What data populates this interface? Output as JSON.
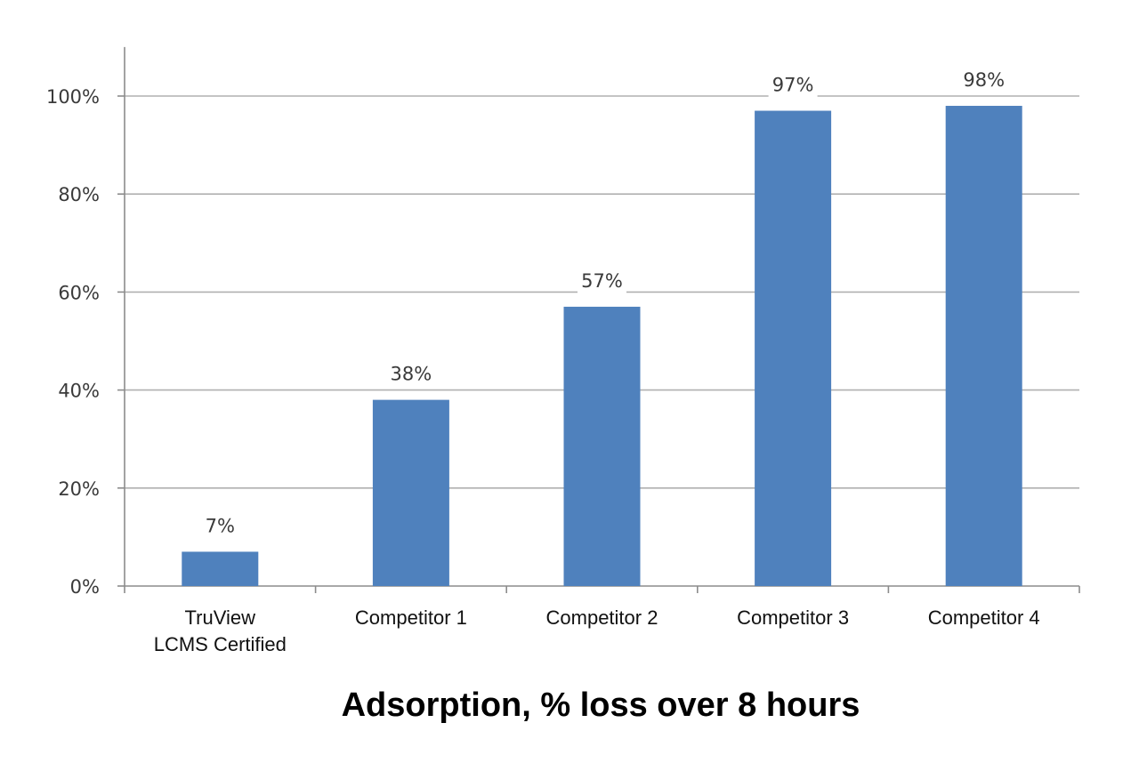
{
  "chart_data": {
    "type": "bar",
    "title": "Adsorption, % loss over 8 hours",
    "xlabel": "",
    "ylabel": "",
    "categories": [
      [
        "TruView",
        "LCMS Certified"
      ],
      [
        "Competitor 1"
      ],
      [
        "Competitor 2"
      ],
      [
        "Competitor 3"
      ],
      [
        "Competitor 4"
      ]
    ],
    "values": [
      7,
      38,
      57,
      97,
      98
    ],
    "value_labels": [
      "7%",
      "38%",
      "57%",
      "97%",
      "98%"
    ],
    "yticks": [
      0,
      20,
      40,
      60,
      80,
      100
    ],
    "ytick_labels": [
      "0%",
      "20%",
      "40%",
      "60%",
      "80%",
      "100%"
    ],
    "ylim": [
      0,
      110
    ],
    "grid": true,
    "legend": "none",
    "colors": {
      "bar": "#4F81BD",
      "grid": "#B0B0B0",
      "axis": "#8C8C8C",
      "label_background": "#FFFFFF"
    }
  }
}
